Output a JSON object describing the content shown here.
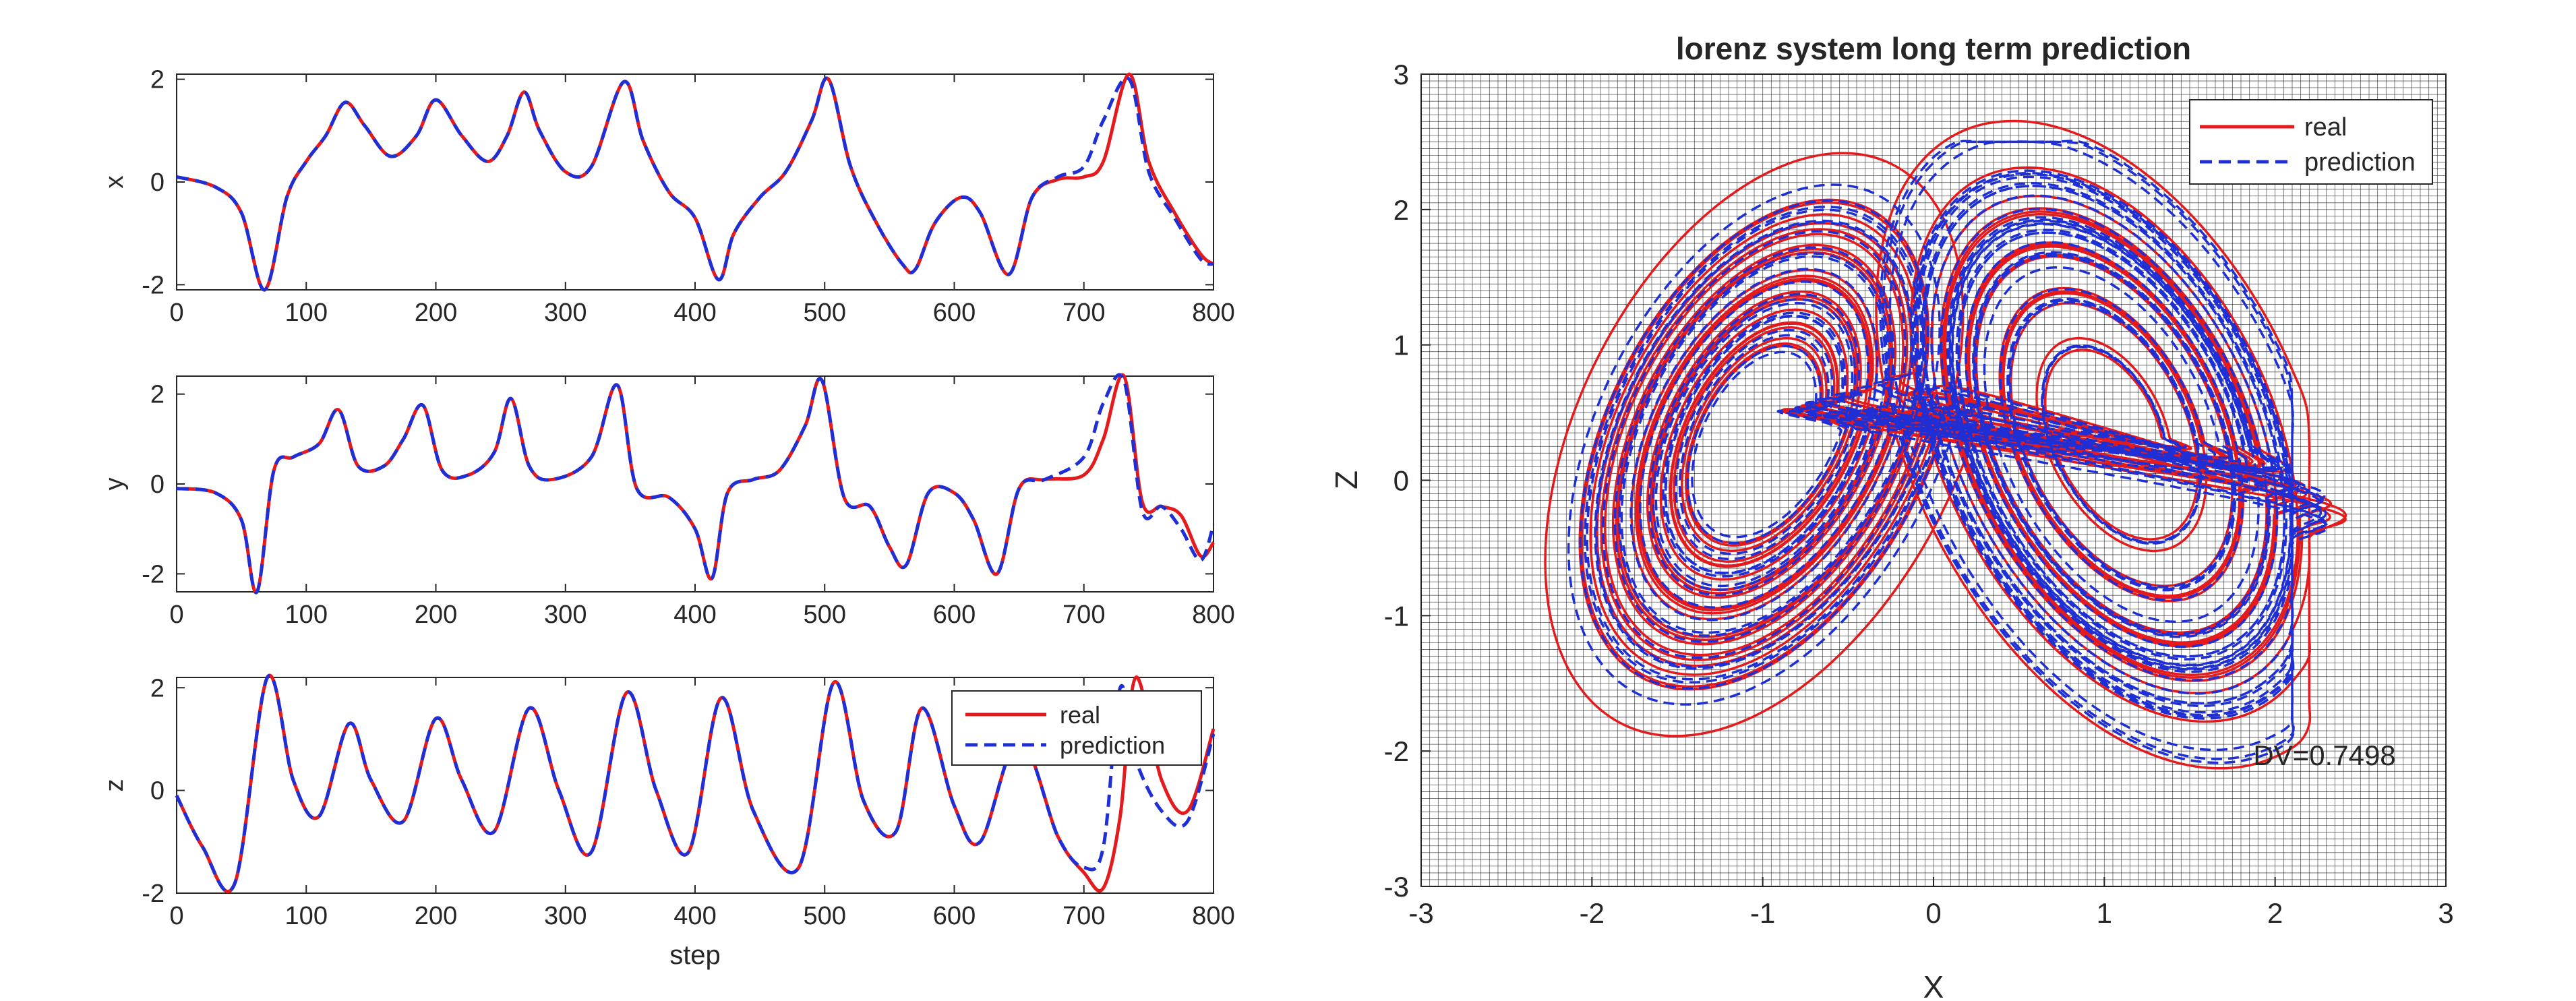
{
  "colors": {
    "real": "#e41a1c",
    "prediction": "#1f2fd6",
    "axes": "#262626",
    "grid": "#1a1a1a",
    "background": "#ffffff"
  },
  "legend_labels": {
    "real": "real",
    "prediction": "prediction"
  },
  "chart_data": [
    {
      "type": "line",
      "panel": "x-series",
      "title": "",
      "xlabel": "",
      "ylabel": "x",
      "xlim": [
        0,
        800
      ],
      "ylim": [
        -2.1,
        2.1
      ],
      "xticks": [
        "0",
        "100",
        "200",
        "300",
        "400",
        "500",
        "600",
        "700",
        "800"
      ],
      "yticks": [
        "-2",
        "0",
        "2"
      ],
      "grid": false,
      "legend": null,
      "x": [
        0,
        30,
        50,
        68,
        85,
        100,
        115,
        130,
        145,
        165,
        185,
        200,
        220,
        240,
        255,
        268,
        280,
        300,
        320,
        345,
        360,
        380,
        400,
        418,
        430,
        450,
        470,
        490,
        503,
        520,
        540,
        560,
        570,
        585,
        605,
        620,
        642,
        660,
        680,
        700,
        715,
        735,
        750,
        770,
        790,
        800
      ],
      "series": [
        {
          "name": "real",
          "values": [
            0.1,
            -0.1,
            -0.6,
            -2.1,
            -0.3,
            0.4,
            0.9,
            1.55,
            1.1,
            0.5,
            0.9,
            1.6,
            0.9,
            0.4,
            0.9,
            1.75,
            1.0,
            0.2,
            0.3,
            1.95,
            0.8,
            -0.2,
            -0.7,
            -1.9,
            -1.0,
            -0.3,
            0.2,
            1.2,
            2.0,
            0.3,
            -0.8,
            -1.6,
            -1.7,
            -0.8,
            -0.3,
            -0.6,
            -1.8,
            -0.3,
            0.05,
            0.1,
            0.4,
            2.1,
            0.4,
            -0.6,
            -1.4,
            -1.6
          ]
        },
        {
          "name": "prediction",
          "values": [
            0.1,
            -0.1,
            -0.6,
            -2.1,
            -0.3,
            0.4,
            0.9,
            1.55,
            1.1,
            0.5,
            0.9,
            1.6,
            0.9,
            0.4,
            0.9,
            1.75,
            1.0,
            0.2,
            0.3,
            1.95,
            0.8,
            -0.2,
            -0.7,
            -1.9,
            -1.0,
            -0.3,
            0.2,
            1.2,
            2.0,
            0.3,
            -0.8,
            -1.6,
            -1.7,
            -0.8,
            -0.3,
            -0.6,
            -1.8,
            -0.3,
            0.1,
            0.3,
            1.2,
            2.0,
            0.2,
            -0.7,
            -1.5,
            -1.6
          ]
        }
      ]
    },
    {
      "type": "line",
      "panel": "y-series",
      "title": "",
      "xlabel": "",
      "ylabel": "y",
      "xlim": [
        0,
        800
      ],
      "ylim": [
        -2.4,
        2.4
      ],
      "xticks": [
        "0",
        "100",
        "200",
        "300",
        "400",
        "500",
        "600",
        "700",
        "800"
      ],
      "yticks": [
        "-2",
        "0",
        "2"
      ],
      "grid": false,
      "legend": null,
      "x": [
        0,
        30,
        50,
        62,
        75,
        90,
        110,
        125,
        140,
        160,
        175,
        190,
        205,
        225,
        245,
        258,
        272,
        290,
        320,
        340,
        355,
        380,
        400,
        413,
        425,
        445,
        465,
        485,
        498,
        515,
        535,
        550,
        563,
        580,
        600,
        615,
        633,
        650,
        670,
        700,
        715,
        731,
        745,
        760,
        775,
        790,
        800
      ],
      "series": [
        {
          "name": "real",
          "values": [
            -0.1,
            -0.2,
            -0.8,
            -2.4,
            0.3,
            0.6,
            0.9,
            1.65,
            0.4,
            0.4,
            1.0,
            1.75,
            0.3,
            0.2,
            0.7,
            1.9,
            0.4,
            0.1,
            0.6,
            2.2,
            -0.1,
            -0.3,
            -1.0,
            -2.1,
            -0.2,
            0.1,
            0.3,
            1.3,
            2.3,
            -0.3,
            -0.5,
            -1.4,
            -1.8,
            -0.2,
            -0.2,
            -0.8,
            -2.0,
            -0.1,
            0.1,
            0.2,
            1.0,
            2.4,
            -0.4,
            -0.5,
            -0.7,
            -1.6,
            -1.3
          ]
        },
        {
          "name": "prediction",
          "values": [
            -0.1,
            -0.2,
            -0.8,
            -2.4,
            0.3,
            0.6,
            0.9,
            1.65,
            0.4,
            0.4,
            1.0,
            1.75,
            0.3,
            0.2,
            0.7,
            1.9,
            0.4,
            0.1,
            0.6,
            2.2,
            -0.1,
            -0.3,
            -1.0,
            -2.1,
            -0.2,
            0.1,
            0.3,
            1.3,
            2.3,
            -0.3,
            -0.5,
            -1.4,
            -1.8,
            -0.2,
            -0.2,
            -0.8,
            -2.0,
            -0.1,
            0.1,
            0.6,
            1.8,
            2.3,
            -0.6,
            -0.5,
            -1.0,
            -1.7,
            -0.9
          ]
        }
      ]
    },
    {
      "type": "line",
      "panel": "z-series",
      "title": "",
      "xlabel": "step",
      "ylabel": "z",
      "xlim": [
        0,
        800
      ],
      "ylim": [
        -2.0,
        2.2
      ],
      "xticks": [
        "0",
        "100",
        "200",
        "300",
        "400",
        "500",
        "600",
        "700",
        "800"
      ],
      "yticks": [
        "-2",
        "0",
        "2"
      ],
      "grid": false,
      "legend": {
        "position": "top-right",
        "entries": [
          "real",
          "prediction"
        ]
      },
      "x": [
        0,
        20,
        45,
        70,
        90,
        110,
        133,
        150,
        175,
        200,
        220,
        245,
        272,
        295,
        320,
        347,
        370,
        395,
        420,
        445,
        480,
        507,
        530,
        555,
        575,
        600,
        620,
        650,
        680,
        700,
        715,
        728,
        740,
        760,
        780,
        800
      ],
      "series": [
        {
          "name": "real",
          "values": [
            -0.1,
            -1.1,
            -1.8,
            2.2,
            0.2,
            -0.5,
            1.3,
            0.2,
            -0.6,
            1.4,
            0.2,
            -0.8,
            1.6,
            0.0,
            -1.2,
            1.9,
            0.0,
            -1.2,
            1.8,
            -0.4,
            -1.5,
            2.1,
            -0.2,
            -0.8,
            1.6,
            -0.3,
            -1.0,
            1.0,
            -0.9,
            -1.6,
            -1.9,
            -0.5,
            2.2,
            0.2,
            -0.4,
            1.2
          ]
        },
        {
          "name": "prediction",
          "values": [
            -0.1,
            -1.1,
            -1.8,
            2.2,
            0.2,
            -0.5,
            1.3,
            0.2,
            -0.6,
            1.4,
            0.2,
            -0.8,
            1.6,
            0.0,
            -1.2,
            1.9,
            0.0,
            -1.2,
            1.8,
            -0.4,
            -1.5,
            2.1,
            -0.2,
            -0.8,
            1.6,
            -0.3,
            -1.0,
            1.0,
            -0.9,
            -1.5,
            -1.1,
            2.0,
            0.6,
            -0.4,
            -0.6,
            1.1
          ]
        }
      ]
    },
    {
      "type": "line",
      "panel": "phase-portrait",
      "title": "lorenz system long term prediction",
      "xlabel": "X",
      "ylabel": "Z",
      "xlim": [
        -3,
        3
      ],
      "ylim": [
        -3,
        3
      ],
      "xticks": [
        "-3",
        "-2",
        "-1",
        "0",
        "1",
        "2",
        "3"
      ],
      "yticks": [
        "-3",
        "-2",
        "-1",
        "0",
        "1",
        "2",
        "3"
      ],
      "grid": true,
      "legend": {
        "position": "top-right",
        "entries": [
          "real",
          "prediction"
        ]
      },
      "annotation": "DV=0.7498",
      "attractor": {
        "left_lobe_center": [
          -1.0,
          0.35
        ],
        "right_lobe_center": [
          1.05,
          0.35
        ],
        "real": {
          "x_range": [
            -2.35,
            2.2
          ],
          "z_range": [
            -2.3,
            2.65
          ]
        },
        "prediction": {
          "x_range": [
            -2.2,
            2.1
          ],
          "z_range": [
            -2.1,
            2.5
          ]
        }
      }
    }
  ]
}
